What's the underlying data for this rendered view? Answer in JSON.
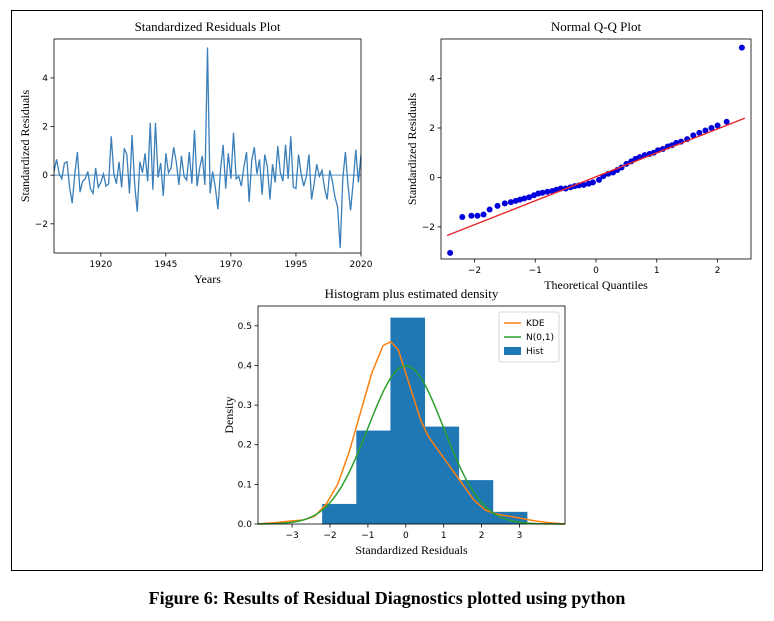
{
  "figure": {
    "caption": "Figure 6: Results of Residual Diagnostics plotted using python"
  },
  "colors": {
    "residual_line": "#3a7fb9",
    "qq_points": "#0000dd",
    "qq_line": "#e8282a",
    "hist_fill": "#1f77b4",
    "kde": "#ff7f0e",
    "normal": "#2ca02c"
  },
  "chart_data": [
    {
      "type": "line",
      "title": "Standardized Residuals Plot",
      "xlabel": "Years",
      "ylabel": "Standardized Residuals",
      "xlim": [
        1902,
        2020
      ],
      "ylim": [
        -3.2,
        5.6
      ],
      "xticks": [
        1920,
        1945,
        1970,
        1995,
        2020
      ],
      "yticks": [
        -2,
        0,
        2,
        4
      ],
      "reference_line": 0,
      "x_start": 1902,
      "x_step": 1,
      "values": [
        0.15,
        0.65,
        0.05,
        -0.15,
        0.5,
        0.55,
        -0.5,
        -1.15,
        0.05,
        0.95,
        -0.7,
        -0.25,
        -0.15,
        0.15,
        -0.55,
        -0.75,
        0.3,
        -0.5,
        -0.3,
        0.05,
        -0.45,
        -0.35,
        1.6,
        0.05,
        -0.35,
        0.55,
        -0.5,
        1.1,
        0.85,
        -0.75,
        1.65,
        -0.35,
        -1.5,
        0.55,
        0.1,
        0.9,
        -0.25,
        2.15,
        -0.6,
        2.15,
        -0.1,
        0.5,
        -0.85,
        0.9,
        0.1,
        0.3,
        1.15,
        0.55,
        -0.4,
        0.8,
        -0.05,
        -0.2,
        0.95,
        -0.35,
        1.85,
        -0.45,
        0.3,
        0.8,
        -0.4,
        5.25,
        -0.75,
        0.15,
        -0.5,
        -1.4,
        0.2,
        1.25,
        -0.55,
        0.9,
        -0.15,
        1.75,
        -0.15,
        -0.05,
        -0.45,
        0.35,
        0.95,
        -1.1,
        0.6,
        1.15,
        0.05,
        0.65,
        -0.8,
        0.85,
        0.35,
        -1.0,
        0.45,
        -0.3,
        1.2,
        0.1,
        -0.25,
        1.25,
        -0.15,
        1.6,
        -0.5,
        -0.55,
        0.85,
        0.05,
        -0.45,
        -0.05,
        0.85,
        -1.0,
        -0.35,
        0.45,
        -0.05,
        0.2,
        -0.55,
        -1.0,
        0.2,
        -0.25,
        -0.9,
        -1.3,
        -3.0,
        -0.15,
        0.95,
        -0.4,
        -1.45,
        -0.3,
        1.05,
        -0.3,
        0.85
      ]
    },
    {
      "type": "scatter",
      "title": "Normal Q-Q Plot",
      "xlabel": "Theoretical Quantiles",
      "ylabel": "Standardized Residuals",
      "xlim": [
        -2.55,
        2.55
      ],
      "ylim": [
        -3.3,
        5.6
      ],
      "xticks": [
        -2,
        -1,
        0,
        1,
        2
      ],
      "yticks": [
        -2,
        0,
        2,
        4
      ],
      "line": {
        "x": [
          -2.45,
          2.45
        ],
        "y": [
          -2.35,
          2.4
        ]
      },
      "points": {
        "x": [
          -2.4,
          -2.2,
          -2.05,
          -1.95,
          -1.85,
          -1.75,
          -1.62,
          -1.5,
          -1.4,
          -1.32,
          -1.25,
          -1.18,
          -1.1,
          -1.02,
          -0.95,
          -0.88,
          -0.8,
          -0.72,
          -0.65,
          -0.58,
          -0.5,
          -0.42,
          -0.35,
          -0.28,
          -0.2,
          -0.12,
          -0.05,
          0.05,
          0.12,
          0.2,
          0.28,
          0.35,
          0.42,
          0.5,
          0.58,
          0.65,
          0.72,
          0.8,
          0.88,
          0.95,
          1.02,
          1.1,
          1.18,
          1.25,
          1.32,
          1.4,
          1.5,
          1.6,
          1.7,
          1.8,
          1.9,
          2.0,
          2.15,
          2.4
        ],
        "y": [
          -3.05,
          -1.6,
          -1.55,
          -1.55,
          -1.5,
          -1.3,
          -1.15,
          -1.05,
          -1.0,
          -0.95,
          -0.9,
          -0.85,
          -0.8,
          -0.72,
          -0.65,
          -0.62,
          -0.58,
          -0.55,
          -0.5,
          -0.45,
          -0.45,
          -0.4,
          -0.35,
          -0.32,
          -0.3,
          -0.25,
          -0.2,
          -0.1,
          0.05,
          0.15,
          0.2,
          0.3,
          0.4,
          0.55,
          0.65,
          0.75,
          0.82,
          0.9,
          0.95,
          1.0,
          1.1,
          1.15,
          1.25,
          1.3,
          1.4,
          1.45,
          1.55,
          1.7,
          1.8,
          1.9,
          2.0,
          2.1,
          2.25,
          5.25
        ]
      }
    },
    {
      "type": "bar",
      "title": "Histogram plus estimated density",
      "xlabel": "Standardized Residuals",
      "ylabel": "Density",
      "xlim": [
        -3.9,
        4.2
      ],
      "ylim": [
        0,
        0.55
      ],
      "xticks": [
        -3,
        -2,
        -1,
        0,
        1,
        2,
        3
      ],
      "yticks": [
        0.0,
        0.1,
        0.2,
        0.3,
        0.4,
        0.5
      ],
      "legend": {
        "position": "top-right",
        "entries": [
          "KDE",
          "N(0,1)",
          "Hist"
        ]
      },
      "bins": [
        -2.2,
        -1.3,
        -0.4,
        0.5,
        1.4,
        2.3,
        3.2
      ],
      "densities": [
        0.05,
        0.235,
        0.52,
        0.245,
        0.11,
        0.03
      ],
      "kde": {
        "x": [
          -3.9,
          -3.5,
          -3.0,
          -2.7,
          -2.4,
          -2.1,
          -1.8,
          -1.5,
          -1.2,
          -0.9,
          -0.6,
          -0.4,
          -0.2,
          0.0,
          0.2,
          0.4,
          0.6,
          0.9,
          1.2,
          1.5,
          1.8,
          2.1,
          2.4,
          2.7,
          3.0,
          3.4,
          3.8,
          4.2
        ],
        "y": [
          0.0,
          0.003,
          0.008,
          0.01,
          0.02,
          0.05,
          0.1,
          0.18,
          0.28,
          0.38,
          0.45,
          0.46,
          0.44,
          0.38,
          0.32,
          0.26,
          0.22,
          0.18,
          0.14,
          0.1,
          0.06,
          0.035,
          0.025,
          0.02,
          0.015,
          0.008,
          0.003,
          0.0
        ]
      },
      "normal_pdf": {
        "mean": 0,
        "sd": 1
      }
    }
  ]
}
